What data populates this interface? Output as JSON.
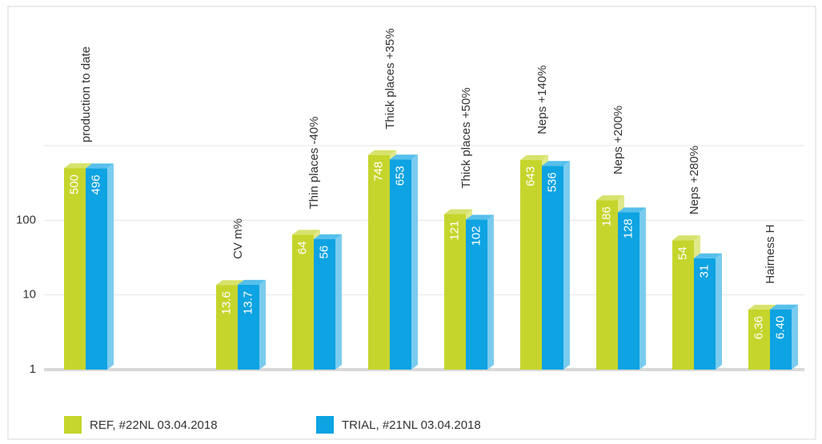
{
  "chart_data": {
    "type": "bar",
    "categories": [
      "production to date",
      null,
      "CV m%",
      "Thin places -40%",
      "Thick places +35%",
      "Thick places +50%",
      "Neps  +140%",
      "Neps  +200%",
      "Neps  +280%",
      "Hairness H"
    ],
    "series": [
      {
        "name": "REF, #22NL 03.04.2018",
        "color": "#c6d52c",
        "values": [
          500,
          null,
          13.6,
          64,
          748,
          121,
          643,
          186,
          54,
          6.36
        ],
        "value_labels": [
          "500",
          null,
          "13.6",
          "64",
          "748",
          "121",
          "643",
          "186",
          "54",
          "6.36"
        ]
      },
      {
        "name": "TRIAL, #21NL 03.04.2018",
        "color": "#0ea3e2",
        "values": [
          496,
          null,
          13.7,
          56,
          653,
          102,
          536,
          128,
          31,
          6.4
        ],
        "value_labels": [
          "496",
          null,
          "13.7",
          "56",
          "653",
          "102",
          "536",
          "128",
          "31",
          "6.40"
        ]
      }
    ],
    "log_scale": true,
    "ylim": [
      1,
      1000
    ],
    "yticks": [
      1,
      10,
      100
    ],
    "grid": true
  }
}
